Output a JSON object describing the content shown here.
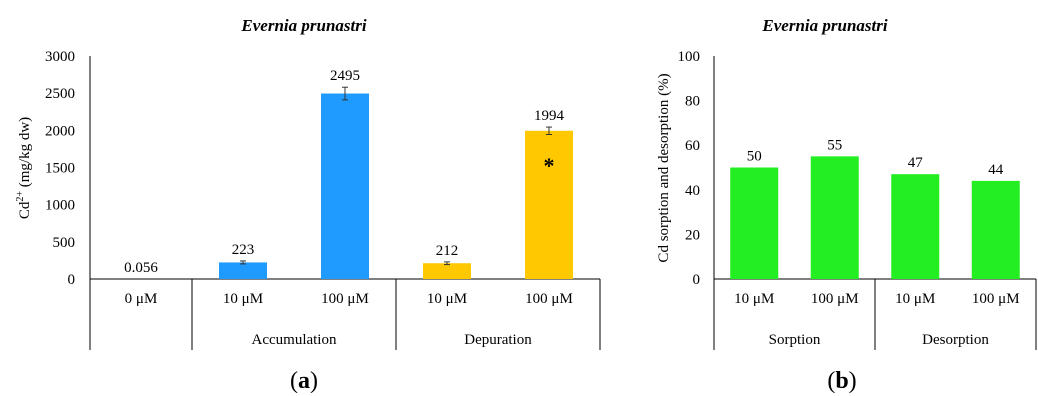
{
  "chart_data": [
    {
      "type": "bar",
      "title": "Evernia prunastri",
      "ylabel": "Cd2+ (mg/kg dw)",
      "ylabel_main": "Cd",
      "ylabel_sup": "2+",
      "ylabel_rest": " (mg/kg dw)",
      "ylim": [
        0,
        3000
      ],
      "yticks": [
        "0",
        "500",
        "1000",
        "1500",
        "2000",
        "2500",
        "3000"
      ],
      "categories": [
        "0 μM",
        "10 μM",
        "100 μM",
        "10 μM",
        "100 μM"
      ],
      "groups": [
        {
          "label": "",
          "span": 1
        },
        {
          "label": "Accumulation",
          "span": 2
        },
        {
          "label": "Depuration",
          "span": 2
        }
      ],
      "values": [
        0.056,
        223,
        2495,
        212,
        1994
      ],
      "data_labels": [
        "0.056",
        "223",
        "2495",
        "212",
        "1994"
      ],
      "errors": [
        0,
        20,
        85,
        18,
        50
      ],
      "colors": [
        "#1f9bff",
        "#1f9bff",
        "#1f9bff",
        "#ffc800",
        "#ffc800"
      ],
      "annotations": [
        {
          "category_index": 4,
          "text": "*"
        }
      ],
      "panel_label": "a",
      "grid": false
    },
    {
      "type": "bar",
      "title": "Evernia prunastri",
      "ylabel": "Cd sorption and desorption (%)",
      "ylim": [
        0,
        100
      ],
      "yticks": [
        "0",
        "20",
        "40",
        "60",
        "80",
        "100"
      ],
      "categories": [
        "10 μM",
        "100 μM",
        "10 μM",
        "100 μM"
      ],
      "groups": [
        {
          "label": "Sorption",
          "span": 2
        },
        {
          "label": "Desorption",
          "span": 2
        }
      ],
      "values": [
        50,
        55,
        47,
        44
      ],
      "data_labels": [
        "50",
        "55",
        "47",
        "44"
      ],
      "colors": [
        "#22ee22",
        "#22ee22",
        "#22ee22",
        "#22ee22"
      ],
      "panel_label": "b",
      "grid": false
    }
  ]
}
